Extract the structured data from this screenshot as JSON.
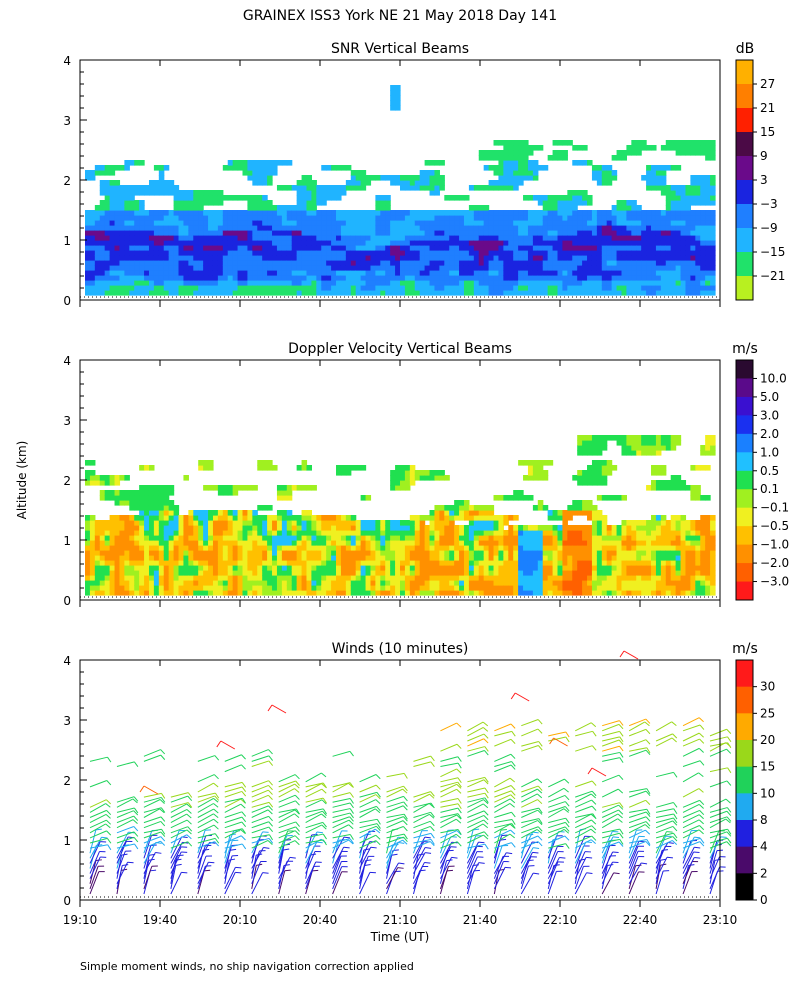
{
  "title": "GRAINEX ISS3 York NE  21 May 2018 Day 141",
  "footnote": "Simple moment winds, no ship navigation correction applied",
  "shared": {
    "ylabel": "Altitude (km)",
    "xlabel": "Time (UT)",
    "yticks": [
      "0",
      "1",
      "2",
      "3",
      "4"
    ],
    "xticks": [
      "19:10",
      "19:40",
      "20:10",
      "20:40",
      "21:10",
      "21:40",
      "22:10",
      "22:40",
      "23:10"
    ]
  },
  "chart_data": [
    {
      "type": "heatmap",
      "title": "SNR Vertical Beams",
      "ylabel": "Altitude (km)",
      "ylim": [
        0,
        4
      ],
      "x_range": [
        "19:10",
        "23:10"
      ],
      "colorbar": {
        "unit": "dB",
        "labels": [
          "27",
          "21",
          "15",
          "9",
          "3",
          "−3",
          "−9",
          "−15",
          "−21"
        ],
        "colors": [
          "#ffb000",
          "#ff7f00",
          "#ff2000",
          "#4b0a46",
          "#6a0a8a",
          "#1a24e0",
          "#1f7fff",
          "#20b4ff",
          "#20e26a",
          "#b8f020"
        ]
      }
    },
    {
      "type": "heatmap",
      "title": "Doppler Velocity Vertical Beams",
      "ylabel": "Altitude (km)",
      "ylim": [
        0,
        4
      ],
      "x_range": [
        "19:10",
        "23:10"
      ],
      "colorbar": {
        "unit": "m/s",
        "labels": [
          "10.0",
          "5.0",
          "3.0",
          "2.0",
          "1.0",
          "0.5",
          "0.1",
          "−0.1",
          "−0.5",
          "−1.0",
          "−2.0",
          "−3.0"
        ],
        "colors": [
          "#2a0a30",
          "#5a0a8a",
          "#3a10d0",
          "#1a30f0",
          "#1a80ff",
          "#20c0ff",
          "#20e050",
          "#a0f020",
          "#f0f020",
          "#ffc000",
          "#ff9000",
          "#ff6000",
          "#ff1a1a"
        ]
      }
    },
    {
      "type": "barbs",
      "title": "Winds (10 minutes)",
      "ylabel": "Altitude (km)",
      "ylim": [
        0,
        4
      ],
      "xlabel": "Time (UT)",
      "x_range": [
        "19:10",
        "23:10"
      ],
      "colorbar": {
        "unit": "m/s",
        "labels": [
          "30",
          "25",
          "20",
          "15",
          "10",
          "8",
          "4",
          "2",
          "0"
        ],
        "colors": [
          "#ff1a1a",
          "#ff6000",
          "#ffaa00",
          "#9ad81a",
          "#20d25a",
          "#20aaf0",
          "#2020e0",
          "#4a0a6a",
          "#000000"
        ]
      }
    }
  ]
}
